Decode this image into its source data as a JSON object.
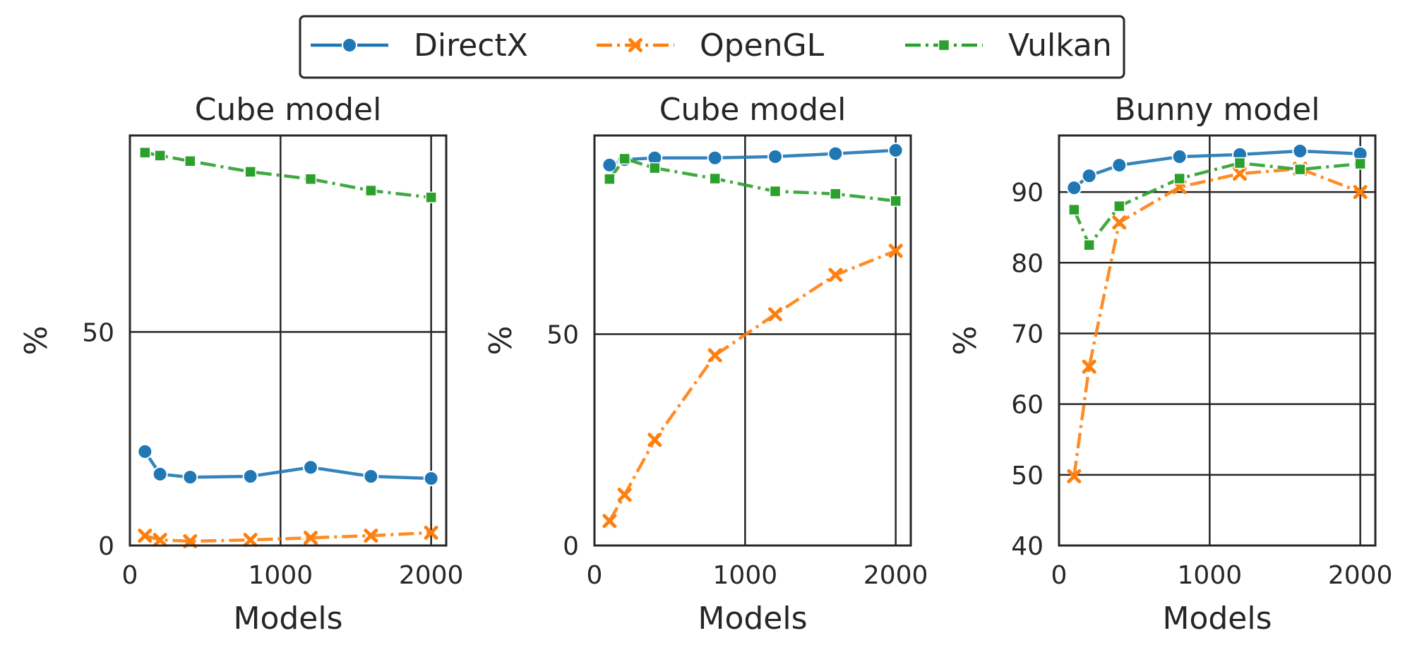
{
  "legend": {
    "position": "top-center",
    "entries": [
      {
        "label": "DirectX",
        "color": "#1f77b4",
        "marker": "circle",
        "dash": "solid"
      },
      {
        "label": "OpenGL",
        "color": "#ff7f0e",
        "marker": "x",
        "dash": "dashdot"
      },
      {
        "label": "Vulkan",
        "color": "#2ca02c",
        "marker": "square",
        "dash": "dashdot"
      }
    ]
  },
  "chart_data": [
    {
      "type": "line",
      "title": "Cube model",
      "xlabel": "Models",
      "ylabel": "%",
      "xlim": [
        0,
        2100
      ],
      "ylim": [
        0,
        96
      ],
      "xticks": [
        0,
        1000,
        2000
      ],
      "yticks": [
        0,
        50
      ],
      "grid": true,
      "x": [
        100,
        200,
        400,
        800,
        1200,
        1600,
        2000
      ],
      "series": [
        {
          "name": "DirectX",
          "values": [
            22.0,
            16.7,
            16.0,
            16.2,
            18.3,
            16.2,
            15.7
          ]
        },
        {
          "name": "OpenGL",
          "values": [
            2.3,
            1.3,
            1.0,
            1.3,
            1.8,
            2.3,
            3.0
          ]
        },
        {
          "name": "Vulkan",
          "values": [
            92.0,
            91.3,
            90.0,
            87.5,
            85.8,
            83.1,
            81.5
          ]
        }
      ]
    },
    {
      "type": "line",
      "title": "Cube model",
      "xlabel": "Models",
      "ylabel": "%",
      "xlim": [
        0,
        2100
      ],
      "ylim": [
        0,
        97
      ],
      "xticks": [
        0,
        1000,
        2000
      ],
      "yticks": [
        0,
        50
      ],
      "grid": true,
      "x": [
        100,
        200,
        400,
        800,
        1200,
        1600,
        2000
      ],
      "series": [
        {
          "name": "DirectX",
          "values": [
            90.0,
            91.3,
            91.7,
            91.7,
            92.0,
            92.7,
            93.5
          ]
        },
        {
          "name": "OpenGL",
          "values": [
            5.8,
            12.0,
            25.0,
            45.0,
            54.7,
            64.0,
            69.7
          ]
        },
        {
          "name": "Vulkan",
          "values": [
            86.7,
            91.5,
            89.3,
            86.8,
            83.8,
            83.2,
            81.5
          ]
        }
      ]
    },
    {
      "type": "line",
      "title": "Bunny model",
      "xlabel": "Models",
      "ylabel": "%",
      "xlim": [
        0,
        2100
      ],
      "ylim": [
        40,
        98
      ],
      "xticks": [
        0,
        1000,
        2000
      ],
      "yticks": [
        40,
        50,
        60,
        70,
        80,
        90
      ],
      "grid": true,
      "x": [
        100,
        200,
        400,
        800,
        1200,
        1600,
        2000
      ],
      "series": [
        {
          "name": "DirectX",
          "values": [
            90.6,
            92.3,
            93.8,
            95.0,
            95.3,
            95.8,
            95.4
          ]
        },
        {
          "name": "OpenGL",
          "values": [
            49.8,
            65.3,
            85.7,
            90.7,
            92.6,
            93.3,
            90.0
          ]
        },
        {
          "name": "Vulkan",
          "values": [
            87.5,
            82.5,
            88.0,
            91.9,
            94.1,
            93.2,
            94.0
          ]
        }
      ]
    }
  ]
}
